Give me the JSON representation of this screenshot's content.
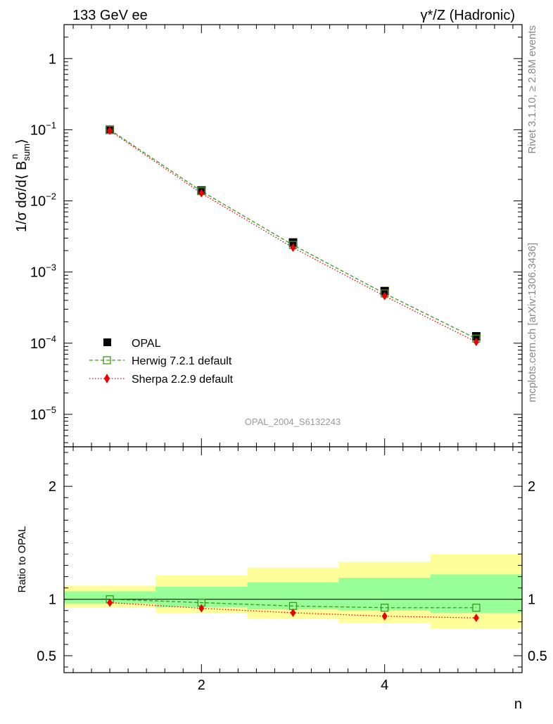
{
  "header": {
    "left": "133 GeV ee",
    "right": "γ*/Z (Hadronic)"
  },
  "side_labels": {
    "rivet": "Rivet 3.1.10, ≥ 2.8M events",
    "mcplots": "mcplots.cern.ch [arXiv:1306.3436]"
  },
  "watermark": "OPAL_2004_S6132243",
  "chart_data": [
    {
      "type": "scatter",
      "panel": "main",
      "xlabel": "n",
      "ylabel": "1/σ dσ/d⟨ B_sum^n ⟩",
      "yscale": "log",
      "xlim": [
        0.5,
        5.5
      ],
      "ylim": [
        3.5e-06,
        3
      ],
      "y_ticks": [
        {
          "value": 1e-05,
          "base": "10",
          "exp": "−5"
        },
        {
          "value": 0.0001,
          "base": "10",
          "exp": "−4"
        },
        {
          "value": 0.001,
          "base": "10",
          "exp": "−3"
        },
        {
          "value": 0.01,
          "base": "10",
          "exp": "−2"
        },
        {
          "value": 0.1,
          "base": "10",
          "exp": "−1"
        },
        {
          "value": 1,
          "base": "1",
          "exp": ""
        }
      ],
      "legend_position": "bottom-left",
      "series": [
        {
          "name": "OPAL",
          "style": "data",
          "color": "#000000",
          "x": [
            1,
            2,
            3,
            4,
            5
          ],
          "y": [
            0.1,
            0.014,
            0.0026,
            0.00054,
            0.000125
          ]
        },
        {
          "name": "Herwig 7.2.1 default",
          "style": "dashed-open-square",
          "color": "#3a9a1a",
          "x": [
            1,
            2,
            3,
            4,
            5
          ],
          "y": [
            0.1,
            0.0137,
            0.0024,
            0.0005,
            0.000116
          ]
        },
        {
          "name": "Sherpa 2.2.9 default",
          "style": "dotted-diamond",
          "color": "#ee0000",
          "x": [
            1,
            2,
            3,
            4,
            5
          ],
          "y": [
            0.097,
            0.0128,
            0.0022,
            0.00046,
            0.000104
          ]
        }
      ]
    },
    {
      "type": "line",
      "panel": "ratio",
      "xlabel": "n",
      "ylabel": "Ratio to OPAL",
      "ylim": [
        0.35,
        2.35
      ],
      "x_ticks": [
        2,
        4
      ],
      "y_ticks": [
        0.5,
        1,
        2
      ],
      "bands": {
        "x_edges": [
          0.5,
          1.5,
          2.5,
          3.5,
          4.5,
          5.5
        ],
        "outer": {
          "color": "#ffff99",
          "low": [
            0.93,
            0.88,
            0.83,
            0.79,
            0.74
          ],
          "high": [
            1.12,
            1.21,
            1.28,
            1.33,
            1.4
          ]
        },
        "inner": {
          "color": "#99ff99",
          "low": [
            0.96,
            0.93,
            0.91,
            0.9,
            0.88
          ],
          "high": [
            1.07,
            1.11,
            1.15,
            1.19,
            1.22
          ]
        }
      },
      "series": [
        {
          "name": "Herwig 7.2.1 default",
          "x": [
            1,
            2,
            3,
            4,
            5
          ],
          "y": [
            1.0,
            0.97,
            0.94,
            0.925,
            0.925
          ]
        },
        {
          "name": "Sherpa 2.2.9 default",
          "x": [
            1,
            2,
            3,
            4,
            5
          ],
          "y": [
            0.97,
            0.92,
            0.88,
            0.85,
            0.835
          ]
        }
      ]
    }
  ]
}
